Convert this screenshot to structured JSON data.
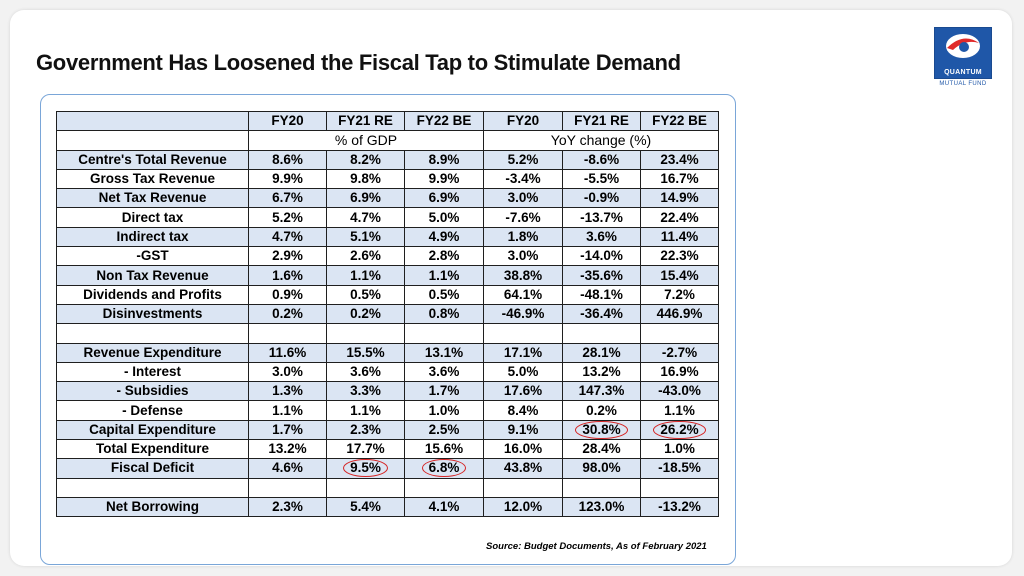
{
  "title": "Government Has Loosened the Fiscal Tap to Stimulate Demand",
  "logo": {
    "brand": "QUANTUM",
    "sub": "MUTUAL FUND",
    "colors": {
      "primary": "#1f57a8",
      "accent": "#e02a2a"
    }
  },
  "table": {
    "headers": [
      "",
      "FY20",
      "FY21 RE",
      "FY22 BE",
      "FY20",
      "FY21 RE",
      "FY22 BE"
    ],
    "units": {
      "gdp": "% of GDP",
      "yoy": "YoY change (%)"
    },
    "rows": [
      {
        "label": "Centre's Total Revenue",
        "cells": [
          "8.6%",
          "8.2%",
          "8.9%",
          "5.2%",
          "-8.6%",
          "23.4%"
        ]
      },
      {
        "label": "Gross Tax Revenue",
        "cells": [
          "9.9%",
          "9.8%",
          "9.9%",
          "-3.4%",
          "-5.5%",
          "16.7%"
        ]
      },
      {
        "label": "Net Tax Revenue",
        "cells": [
          "6.7%",
          "6.9%",
          "6.9%",
          "3.0%",
          "-0.9%",
          "14.9%"
        ]
      },
      {
        "label": "Direct tax",
        "cells": [
          "5.2%",
          "4.7%",
          "5.0%",
          "-7.6%",
          "-13.7%",
          "22.4%"
        ]
      },
      {
        "label": "Indirect tax",
        "cells": [
          "4.7%",
          "5.1%",
          "4.9%",
          "1.8%",
          "3.6%",
          "11.4%"
        ]
      },
      {
        "label": "-GST",
        "cells": [
          "2.9%",
          "2.6%",
          "2.8%",
          "3.0%",
          "-14.0%",
          "22.3%"
        ]
      },
      {
        "label": "Non Tax Revenue",
        "cells": [
          "1.6%",
          "1.1%",
          "1.1%",
          "38.8%",
          "-35.6%",
          "15.4%"
        ]
      },
      {
        "label": "Dividends and Profits",
        "cells": [
          "0.9%",
          "0.5%",
          "0.5%",
          "64.1%",
          "-48.1%",
          "7.2%"
        ]
      },
      {
        "label": "Disinvestments",
        "cells": [
          "0.2%",
          "0.2%",
          "0.8%",
          "-46.9%",
          "-36.4%",
          "446.9%"
        ]
      },
      {
        "label": "",
        "cells": [
          "",
          "",
          "",
          "",
          "",
          ""
        ]
      },
      {
        "label": "Revenue Expenditure",
        "cells": [
          "11.6%",
          "15.5%",
          "13.1%",
          "17.1%",
          "28.1%",
          "-2.7%"
        ]
      },
      {
        "label": "-  Interest",
        "cells": [
          "3.0%",
          "3.6%",
          "3.6%",
          "5.0%",
          "13.2%",
          "16.9%"
        ]
      },
      {
        "label": "- Subsidies",
        "cells": [
          "1.3%",
          "3.3%",
          "1.7%",
          "17.6%",
          "147.3%",
          "-43.0%"
        ]
      },
      {
        "label": "- Defense",
        "cells": [
          "1.1%",
          "1.1%",
          "1.0%",
          "8.4%",
          "0.2%",
          "1.1%"
        ]
      },
      {
        "label": "Capital Expenditure",
        "cells": [
          "1.7%",
          "2.3%",
          "2.5%",
          "9.1%",
          "30.8%",
          "26.2%"
        ]
      },
      {
        "label": "Total Expenditure",
        "cells": [
          "13.2%",
          "17.7%",
          "15.6%",
          "16.0%",
          "28.4%",
          "1.0%"
        ]
      },
      {
        "label": "Fiscal Deficit",
        "cells": [
          "4.6%",
          "9.5%",
          "6.8%",
          "43.8%",
          "98.0%",
          "-18.5%"
        ]
      },
      {
        "label": "",
        "cells": [
          "",
          "",
          "",
          "",
          "",
          ""
        ]
      },
      {
        "label": "Net Borrowing",
        "cells": [
          "2.3%",
          "5.4%",
          "4.1%",
          "12.0%",
          "123.0%",
          "-13.2%"
        ]
      }
    ],
    "highlights": [
      [
        14,
        4
      ],
      [
        14,
        5
      ],
      [
        16,
        1
      ],
      [
        16,
        2
      ]
    ],
    "highlight_color": "#d62424"
  },
  "source": "Source: Budget Documents, As of  February 2021"
}
